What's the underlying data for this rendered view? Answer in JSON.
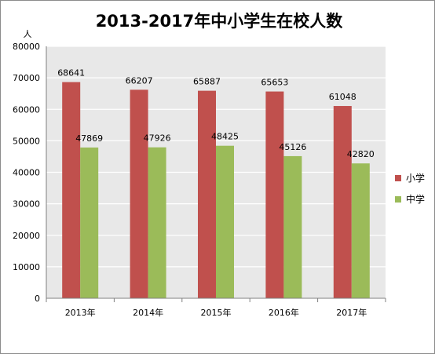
{
  "chart_data": {
    "type": "bar",
    "title": "2013-2017年中小学生在校人数",
    "ylabel": "人",
    "xlabel": "",
    "categories": [
      "2013年",
      "2014年",
      "2015年",
      "2016年",
      "2017年"
    ],
    "series": [
      {
        "name": "小学",
        "color": "#c0504d",
        "values": [
          68641,
          66207,
          65887,
          65653,
          61048
        ]
      },
      {
        "name": "中学",
        "color": "#9bbb59",
        "values": [
          47869,
          47926,
          48425,
          45126,
          42820
        ]
      }
    ],
    "ylim": [
      0,
      80000
    ],
    "yticks": [
      0,
      10000,
      20000,
      30000,
      40000,
      50000,
      60000,
      70000,
      80000
    ],
    "grid": true,
    "legend": "right",
    "plot_background": "#e8e8e8",
    "gridline_color": "#ffffff"
  }
}
